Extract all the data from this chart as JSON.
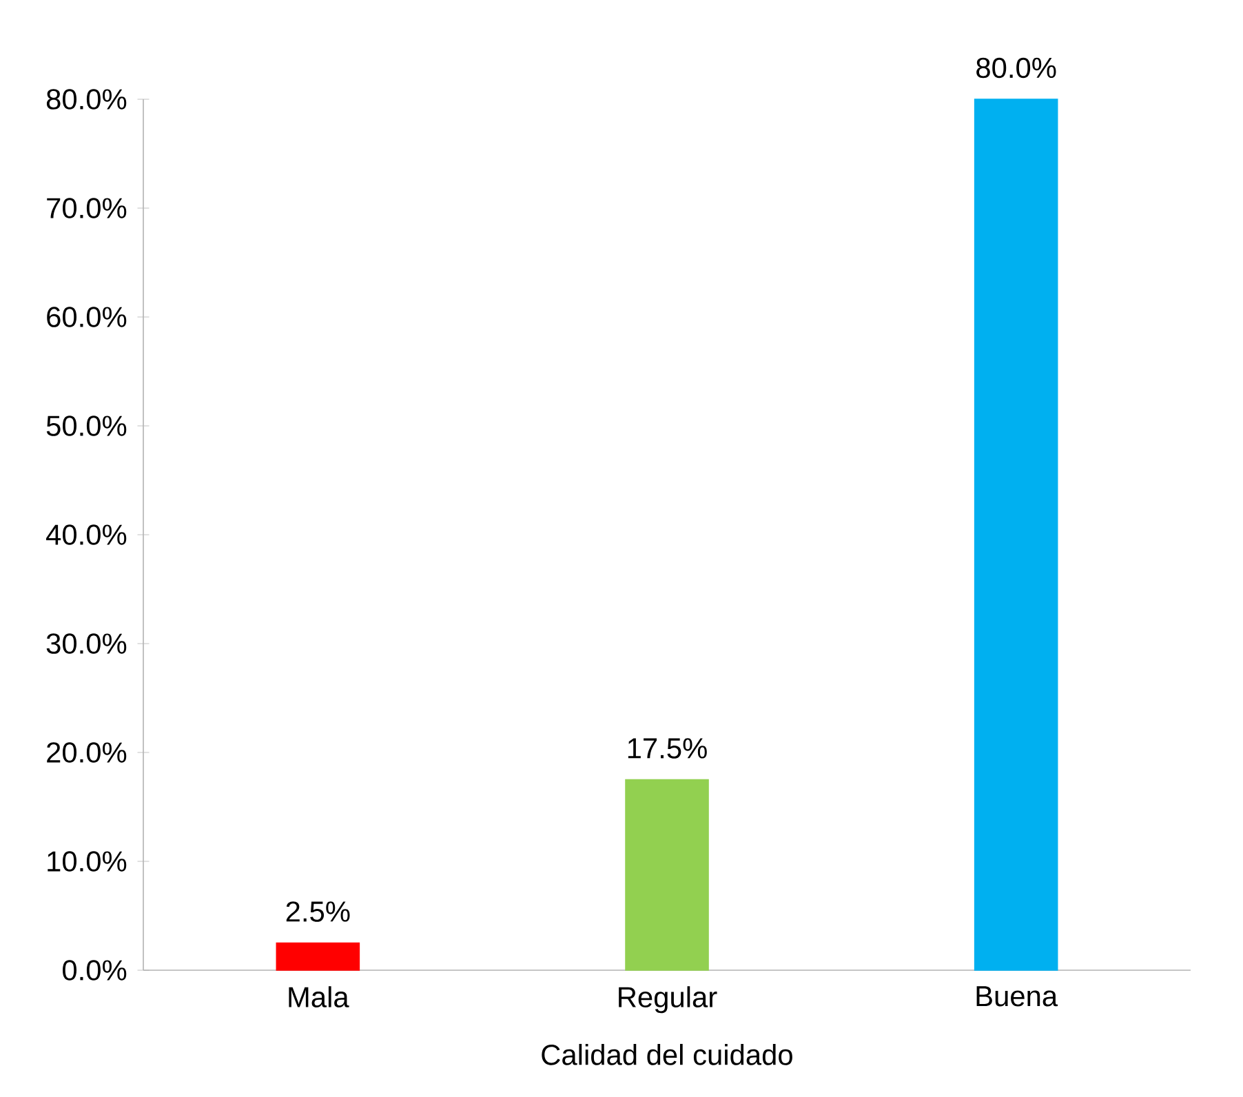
{
  "chart_data": {
    "type": "bar",
    "xlabel": "Calidad del cuidado",
    "categories": [
      "Mala",
      "Regular",
      "Buena"
    ],
    "values": [
      2.5,
      17.5,
      80.0
    ],
    "colors": [
      "#ff0000",
      "#92d050",
      "#00b0f0"
    ],
    "value_labels": [
      "2.5%",
      "17.5%",
      "80.0%"
    ],
    "ylim": [
      0,
      80
    ],
    "yticks": [
      {
        "value": 0,
        "label": "0.0%"
      },
      {
        "value": 10,
        "label": "10.0%"
      },
      {
        "value": 20,
        "label": "20.0%"
      },
      {
        "value": 30,
        "label": "30.0%"
      },
      {
        "value": 40,
        "label": "40.0%"
      },
      {
        "value": 50,
        "label": "50.0%"
      },
      {
        "value": 60,
        "label": "60.0%"
      },
      {
        "value": 70,
        "label": "70.0%"
      },
      {
        "value": 80,
        "label": "80.0%"
      }
    ]
  }
}
